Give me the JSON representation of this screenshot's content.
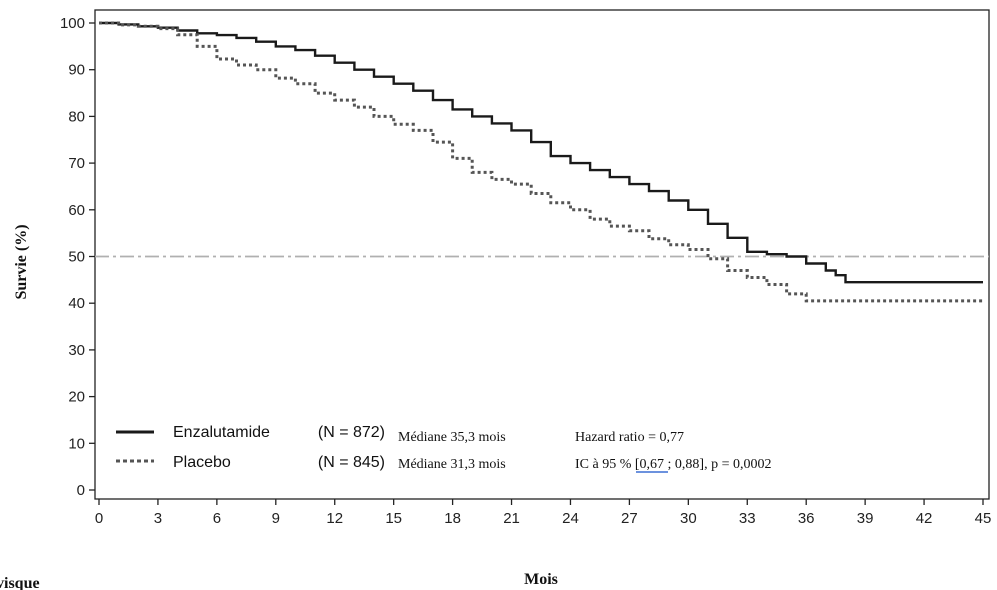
{
  "chart_data": {
    "type": "line",
    "xlabel": "Mois",
    "ylabel": "Survie (%)",
    "xlim": [
      0,
      45
    ],
    "ylim": [
      0,
      100
    ],
    "x_ticks": [
      0,
      3,
      6,
      9,
      12,
      15,
      18,
      21,
      24,
      27,
      30,
      33,
      36,
      39,
      42,
      45
    ],
    "y_ticks": [
      0,
      10,
      20,
      30,
      40,
      50,
      60,
      70,
      80,
      90,
      100
    ],
    "reference_line": {
      "y": 50,
      "style": "dash-dot",
      "color": "#b0b0b0"
    },
    "grid": false,
    "legend_position": "bottom-left",
    "series": [
      {
        "name": "Enzalutamide",
        "n_label": "(N = 872)",
        "median_label": "Médiane 35,3 mois",
        "style": "solid",
        "color": "#1a1a1a",
        "x": [
          0,
          1,
          2,
          3,
          4,
          5,
          6,
          7,
          8,
          9,
          10,
          11,
          12,
          13,
          14,
          15,
          16,
          17,
          18,
          19,
          20,
          21,
          22,
          23,
          24,
          25,
          26,
          27,
          28,
          29,
          30,
          31,
          32,
          33,
          34,
          35,
          36,
          37,
          37.5,
          38,
          39,
          40,
          41,
          42,
          43,
          44,
          45
        ],
        "y": [
          100,
          99.7,
          99.3,
          99,
          98.4,
          97.8,
          97.4,
          96.8,
          96,
          95,
          94.2,
          93,
          91.5,
          90,
          88.5,
          87,
          85.5,
          83.5,
          81.5,
          80,
          78.5,
          77,
          74.5,
          71.5,
          70,
          68.5,
          67,
          65.5,
          64,
          62,
          60,
          57,
          54,
          51,
          50.5,
          50,
          48.5,
          47,
          46,
          44.5,
          44.5,
          44.5,
          44.5,
          44.5,
          44.5,
          44.5,
          44.5
        ]
      },
      {
        "name": "Placebo",
        "n_label": "(N = 845)",
        "median_label": "Médiane 31,3 mois",
        "style": "dotted",
        "color": "#555555",
        "x": [
          0,
          1,
          2,
          3,
          4,
          5,
          6,
          7,
          8,
          9,
          10,
          11,
          12,
          13,
          14,
          15,
          16,
          17,
          18,
          19,
          20,
          21,
          22,
          23,
          24,
          25,
          26,
          27,
          28,
          29,
          30,
          31,
          32,
          33,
          34,
          35,
          36,
          37,
          38,
          39,
          40,
          41,
          42,
          43,
          44,
          45
        ],
        "y": [
          100,
          99.6,
          99.3,
          98.8,
          97.5,
          95,
          92.3,
          91,
          90,
          88.2,
          87,
          85,
          83.5,
          82,
          80,
          78.3,
          77,
          74.5,
          71,
          68,
          66.5,
          65.5,
          63.5,
          61.5,
          60,
          58,
          56.5,
          55.5,
          53.8,
          52.5,
          51.5,
          49.5,
          47,
          45.5,
          44,
          42,
          40.5,
          40.5,
          40.5,
          40.5,
          40.5,
          40.5,
          40.5,
          40.5,
          40.5,
          40.5
        ]
      }
    ],
    "annotations": {
      "hazard_ratio": "Hazard ratio = 0,77",
      "ci": "IC à 95 %  [0,67 ; 0,88], p = 0,0002"
    },
    "corner_fragment": "visque"
  }
}
